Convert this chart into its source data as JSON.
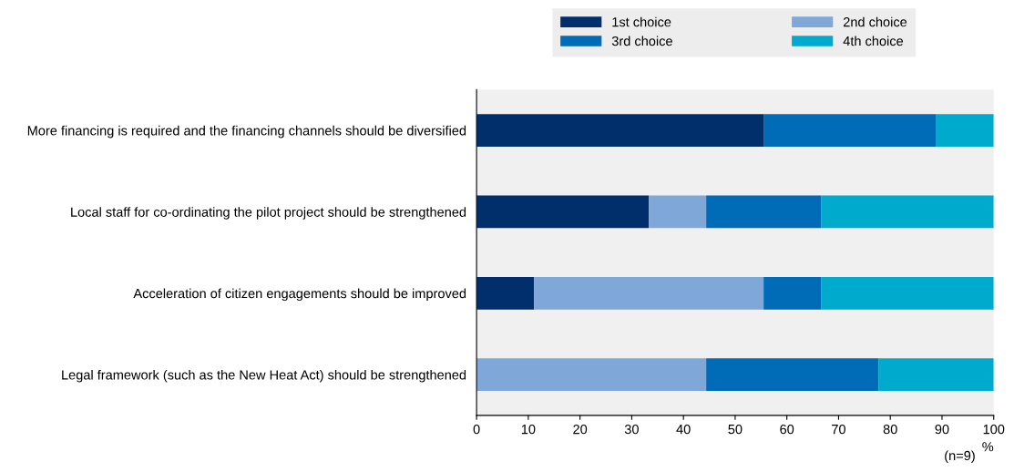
{
  "chart_data": {
    "type": "bar",
    "orientation": "horizontal",
    "stacked": true,
    "categories": [
      "More financing is required and the financing channels should be diversified",
      "Local staff for co-ordinating the pilot project should be strengthened",
      "Acceleration of citizen engagements should be improved",
      "Legal framework (such as the New Heat Act) should be strengthened"
    ],
    "series": [
      {
        "name": "1st choice",
        "color": "#002f6c",
        "values": [
          55.6,
          33.3,
          11.1,
          0
        ]
      },
      {
        "name": "2nd choice",
        "color": "#7fa8d9",
        "values": [
          0,
          11.1,
          44.4,
          44.4
        ]
      },
      {
        "name": "3rd choice",
        "color": "#006bb6",
        "values": [
          33.3,
          22.2,
          11.1,
          33.3
        ]
      },
      {
        "name": "4th choice",
        "color": "#00aacc",
        "values": [
          11.1,
          33.4,
          33.4,
          22.3
        ]
      }
    ],
    "xlim": [
      0,
      100
    ],
    "xticks": [
      0,
      10,
      20,
      30,
      40,
      50,
      60,
      70,
      80,
      90,
      100
    ],
    "xlabel": "%",
    "annotations": [
      "(n=9)"
    ],
    "legend": "top",
    "grid": false
  }
}
